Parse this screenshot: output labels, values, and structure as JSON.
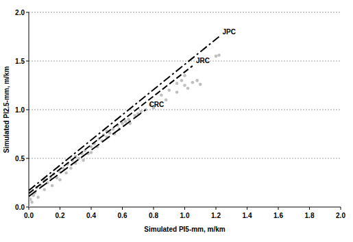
{
  "chart_data": {
    "type": "scatter",
    "x_label": "Simulated PI5-mm, m/km",
    "y_label": "Simulated PI2.5-mm, m/km",
    "xlim": [
      0,
      2.0
    ],
    "ylim": [
      0,
      2.0
    ],
    "xticks": [
      {
        "value": 0,
        "label": "0.0"
      },
      0.2,
      0.4,
      0.6,
      0.8,
      {
        "value": 1,
        "label": "1.0"
      },
      1.2,
      1.4,
      1.6,
      1.8,
      {
        "value": 2,
        "label": "2.0"
      }
    ],
    "yticks": [
      {
        "value": 0,
        "label": "0.0"
      },
      0.5,
      {
        "value": 1,
        "label": "1.0"
      },
      1.5,
      {
        "value": 2,
        "label": "2.0"
      }
    ],
    "grid": true,
    "series": [
      {
        "type": "scatter",
        "color": "#b4b4b4",
        "marker": "circle",
        "x": [
          0.0,
          0.01,
          0.02,
          0.03,
          0.04,
          0.05,
          0.06,
          0.08,
          0.1,
          0.1,
          0.12,
          0.14,
          0.15,
          0.16,
          0.18,
          0.2,
          0.2,
          0.22,
          0.24,
          0.25,
          0.27,
          0.28,
          0.3,
          0.3,
          0.32,
          0.34,
          0.35,
          0.36,
          0.38,
          0.4,
          0.4,
          0.42,
          0.44,
          0.45,
          0.47,
          0.48,
          0.5,
          0.5,
          0.52,
          0.54,
          0.55,
          0.57,
          0.58,
          0.6,
          0.62,
          0.64,
          0.65,
          0.68,
          0.7,
          0.72,
          0.75,
          0.78,
          0.8,
          0.85,
          0.88,
          0.9,
          0.95,
          0.95,
          0.98,
          1.0,
          1.0,
          1.02,
          1.05,
          1.08,
          1.1,
          1.2,
          1.22
        ],
        "values": [
          0.0,
          0.08,
          0.05,
          0.12,
          0.15,
          0.2,
          0.1,
          0.22,
          0.18,
          0.28,
          0.25,
          0.3,
          0.22,
          0.34,
          0.3,
          0.36,
          0.28,
          0.4,
          0.35,
          0.44,
          0.4,
          0.48,
          0.45,
          0.52,
          0.5,
          0.55,
          0.48,
          0.58,
          0.55,
          0.62,
          0.56,
          0.65,
          0.62,
          0.7,
          0.68,
          0.74,
          0.72,
          0.78,
          0.76,
          0.8,
          0.75,
          0.84,
          0.8,
          0.86,
          0.88,
          0.9,
          0.86,
          0.94,
          0.96,
          0.98,
          1.0,
          1.05,
          1.02,
          1.15,
          1.1,
          1.2,
          1.18,
          1.27,
          1.3,
          1.25,
          1.35,
          1.22,
          1.28,
          1.3,
          1.26,
          1.55,
          1.56
        ]
      },
      {
        "name": "JPC",
        "type": "line",
        "color": "#000000",
        "line_style": "dashdot",
        "x": [
          0,
          1.22
        ],
        "values": [
          0.17,
          1.75
        ]
      },
      {
        "name": "JRC",
        "type": "line",
        "color": "#000000",
        "line_style": "dashed",
        "x": [
          0,
          1.05
        ],
        "values": [
          0.14,
          1.45
        ]
      },
      {
        "name": "CRC",
        "type": "line",
        "color": "#000000",
        "line_style": "longdash",
        "x": [
          0,
          0.75
        ],
        "values": [
          0.11,
          1.0
        ]
      }
    ]
  }
}
